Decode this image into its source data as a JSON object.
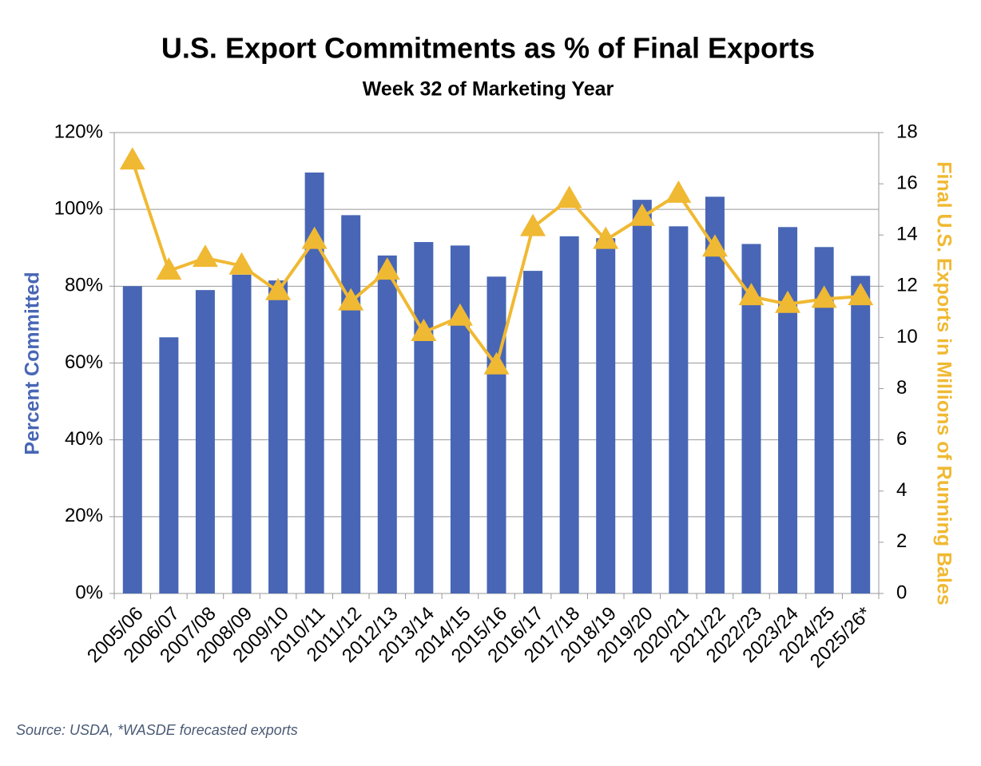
{
  "chart_data": {
    "type": "bar_line",
    "title": "U.S. Export Commitments as % of Final Exports",
    "subtitle": "Week 32 of Marketing Year",
    "source": "Source: USDA, *WASDE forecasted exports",
    "y_label": "Percent Committed",
    "y2_label": "Final U.S. Exports in Millions of Running Bales",
    "categories": [
      "2005/06",
      "2006/07",
      "2007/08",
      "2008/09",
      "2009/10",
      "2010/11",
      "2011/12",
      "2012/13",
      "2013/14",
      "2014/15",
      "2015/16",
      "2016/17",
      "2017/18",
      "2018/19",
      "2019/20",
      "2020/21",
      "2021/22",
      "2022/23",
      "2023/24",
      "2024/25",
      "2025/26*"
    ],
    "series": [
      {
        "name": "Percent Committed",
        "type": "bar",
        "color": "#4866b5",
        "values": [
          80,
          66.7,
          79,
          83,
          81.5,
          109.6,
          98.5,
          88,
          91.5,
          90.6,
          82.5,
          84,
          93,
          92.5,
          102.5,
          95.6,
          103.3,
          91,
          95.4,
          90.2,
          82.7
        ]
      },
      {
        "name": "Final U.S. Exports",
        "type": "line",
        "axis": "y2",
        "color": "#f0b933",
        "values": [
          16.9,
          12.6,
          13.1,
          12.8,
          11.8,
          13.8,
          11.4,
          12.6,
          10.2,
          10.8,
          8.9,
          14.3,
          15.4,
          13.8,
          14.7,
          15.6,
          13.5,
          11.6,
          11.3,
          11.5,
          11.6
        ]
      }
    ],
    "ylim": [
      0,
      120
    ],
    "yticks": [
      {
        "value": 0,
        "label": "0%"
      },
      {
        "value": 20,
        "label": "20%"
      },
      {
        "value": 40,
        "label": "40%"
      },
      {
        "value": 60,
        "label": "60%"
      },
      {
        "value": 80,
        "label": "80%"
      },
      {
        "value": 100,
        "label": "100%"
      },
      {
        "value": 120,
        "label": "120%"
      }
    ],
    "y2lim": [
      0,
      18
    ],
    "y2ticks": [
      0,
      2,
      4,
      6,
      8,
      10,
      12,
      14,
      16,
      18
    ],
    "grid": true
  }
}
